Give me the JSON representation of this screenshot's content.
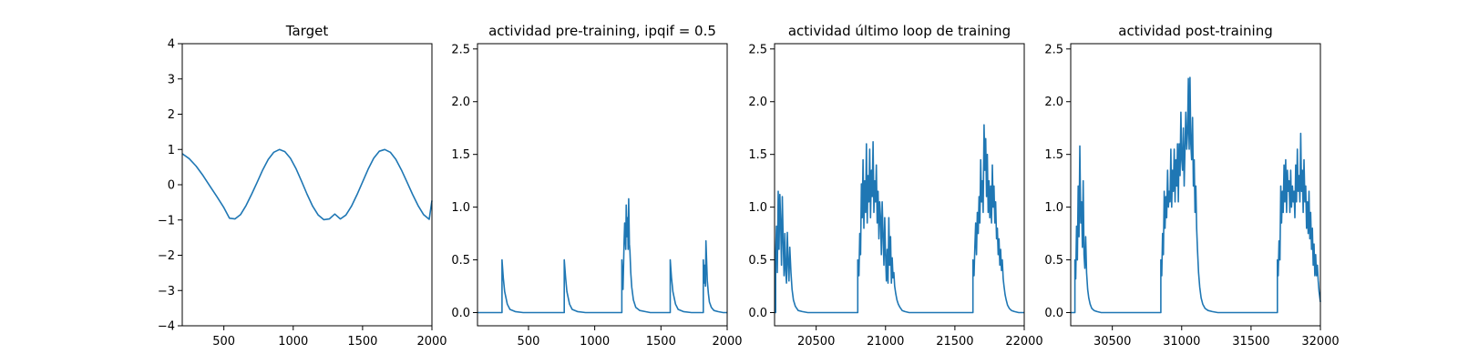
{
  "chart_data": [
    {
      "type": "line",
      "title": "Target",
      "xlabel": "",
      "ylabel": "",
      "xlim": [
        200,
        2000
      ],
      "ylim": [
        -4,
        4
      ],
      "xticks": [
        500,
        1000,
        1500,
        2000
      ],
      "yticks": [
        -4,
        -3,
        -2,
        -1,
        0,
        1,
        2,
        3,
        4
      ],
      "grid": false,
      "series": [
        {
          "x": [
            200,
            250,
            300,
            350,
            400,
            450,
            500,
            540,
            580,
            620,
            660,
            700,
            740,
            780,
            820,
            860,
            900,
            940,
            980,
            1020,
            1060,
            1100,
            1140,
            1180,
            1220,
            1260,
            1300,
            1340,
            1380,
            1420,
            1460,
            1500,
            1540,
            1580,
            1620,
            1660,
            1700,
            1740,
            1780,
            1820,
            1860,
            1900,
            1940,
            1980,
            2000
          ],
          "y": [
            0.88,
            0.74,
            0.53,
            0.26,
            -0.04,
            -0.34,
            -0.65,
            -0.95,
            -0.97,
            -0.85,
            -0.59,
            -0.27,
            0.07,
            0.42,
            0.72,
            0.92,
            1.0,
            0.94,
            0.75,
            0.46,
            0.1,
            -0.27,
            -0.61,
            -0.86,
            -0.99,
            -0.97,
            -0.83,
            -0.97,
            -0.86,
            -0.61,
            -0.28,
            0.08,
            0.44,
            0.75,
            0.95,
            1.0,
            0.92,
            0.72,
            0.42,
            0.08,
            -0.27,
            -0.59,
            -0.85,
            -0.98,
            -0.45
          ]
        }
      ]
    },
    {
      "type": "line",
      "title": "actividad pre-training, ipqif = 0.5",
      "xlabel": "",
      "ylabel": "",
      "xlim": [
        115,
        2000
      ],
      "ylim": [
        -0.125,
        2.55
      ],
      "xticks": [
        500,
        1000,
        1500,
        2000
      ],
      "yticks": [
        0.0,
        0.5,
        1.0,
        1.5,
        2.0,
        2.5
      ],
      "grid": false,
      "series": [
        {
          "x": [
            115,
            300,
            300,
            310,
            320,
            340,
            360,
            400,
            460,
            770,
            770,
            780,
            790,
            810,
            830,
            870,
            930,
            1205,
            1205,
            1212,
            1214,
            1222,
            1226,
            1234,
            1238,
            1244,
            1248,
            1252,
            1256,
            1262,
            1266,
            1272,
            1280,
            1292,
            1310,
            1340,
            1380,
            1420,
            1570,
            1570,
            1580,
            1590,
            1610,
            1630,
            1670,
            1730,
            1820,
            1820,
            1826,
            1830,
            1836,
            1840,
            1846,
            1850,
            1858,
            1866,
            1880,
            1900,
            1930,
            1970,
            2000
          ],
          "y": [
            0,
            0,
            0.5,
            0.33,
            0.2,
            0.08,
            0.03,
            0.01,
            0,
            0,
            0.5,
            0.33,
            0.2,
            0.08,
            0.03,
            0.01,
            0,
            0,
            0.5,
            0.25,
            0.22,
            0.68,
            0.85,
            0.6,
            1.02,
            0.72,
            0.9,
            0.6,
            1.08,
            0.65,
            0.58,
            0.38,
            0.24,
            0.12,
            0.05,
            0.02,
            0.01,
            0,
            0,
            0.5,
            0.33,
            0.2,
            0.08,
            0.03,
            0.01,
            0,
            0,
            0.5,
            0.28,
            0.45,
            0.25,
            0.68,
            0.45,
            0.3,
            0.18,
            0.1,
            0.05,
            0.02,
            0.01,
            0,
            0
          ]
        }
      ]
    },
    {
      "type": "line",
      "title": "actividad último loop de training",
      "xlabel": "",
      "ylabel": "",
      "xlim": [
        20200,
        22000
      ],
      "ylim": [
        -0.125,
        2.55
      ],
      "xticks": [
        20500,
        21000,
        21500,
        22000
      ],
      "yticks": [
        0.0,
        0.5,
        1.0,
        1.5,
        2.0,
        2.5
      ],
      "grid": false,
      "series": [
        {
          "x": [
            20200,
            20208,
            20208,
            20214,
            20220,
            20226,
            20232,
            20238,
            20244,
            20250,
            20256,
            20262,
            20268,
            20274,
            20280,
            20286,
            20292,
            20298,
            20304,
            20310,
            20318,
            20326,
            20336,
            20350,
            20370,
            20400,
            20440,
            20800,
            20800,
            20808,
            20814,
            20820,
            20826,
            20832,
            20838,
            20844,
            20850,
            20856,
            20862,
            20868,
            20874,
            20880,
            20886,
            20892,
            20898,
            20904,
            20910,
            20916,
            20922,
            20928,
            20934,
            20940,
            20946,
            20952,
            20958,
            20964,
            20970,
            20976,
            20982,
            20988,
            20994,
            21000,
            21006,
            21012,
            21018,
            21024,
            21030,
            21036,
            21042,
            21048,
            21054,
            21060,
            21066,
            21074,
            21082,
            21092,
            21104,
            21120,
            21140,
            21170,
            21210,
            21630,
            21630,
            21638,
            21644,
            21650,
            21656,
            21662,
            21668,
            21674,
            21680,
            21686,
            21692,
            21698,
            21704,
            21710,
            21716,
            21722,
            21728,
            21734,
            21740,
            21746,
            21752,
            21758,
            21764,
            21770,
            21776,
            21782,
            21788,
            21794,
            21800,
            21806,
            21812,
            21818,
            21824,
            21830,
            21836,
            21842,
            21848,
            21854,
            21862,
            21870,
            21880,
            21892,
            21908,
            21930,
            21960,
            22000
          ],
          "y": [
            0,
            0,
            0.55,
            0.82,
            0.38,
            1.15,
            0.6,
            1.12,
            0.85,
            0.45,
            1.1,
            0.7,
            0.35,
            0.75,
            0.4,
            0.28,
            0.76,
            0.48,
            0.3,
            0.62,
            0.38,
            0.22,
            0.12,
            0.06,
            0.02,
            0.01,
            0,
            0,
            0.5,
            0.35,
            0.75,
            0.55,
            1.22,
            0.9,
            1.45,
            0.8,
            1.25,
            0.95,
            1.6,
            0.85,
            1.3,
            1.05,
            1.55,
            0.9,
            1.35,
            1.1,
            1.62,
            0.95,
            1.25,
            1.05,
            1.4,
            0.85,
            1.15,
            0.7,
            1.05,
            0.9,
            0.55,
            1.05,
            0.75,
            0.45,
            0.9,
            0.55,
            0.3,
            0.6,
            0.28,
            0.9,
            0.45,
            0.72,
            0.28,
            0.52,
            0.33,
            0.38,
            0.25,
            0.18,
            0.12,
            0.08,
            0.05,
            0.02,
            0.01,
            0,
            0,
            0,
            0.5,
            0.35,
            0.62,
            0.85,
            0.55,
            0.95,
            0.75,
            1.1,
            0.85,
            1.45,
            1.05,
            1.25,
            0.95,
            1.78,
            1.35,
            1.65,
            1.1,
            1.5,
            0.95,
            1.25,
            0.9,
            1.2,
            0.85,
            1.4,
            1.0,
            1.2,
            0.85,
            1.05,
            0.7,
            0.8,
            0.55,
            0.7,
            0.45,
            0.6,
            0.4,
            0.5,
            0.32,
            0.25,
            0.17,
            0.12,
            0.07,
            0.04,
            0.02,
            0.01,
            0,
            0
          ]
        }
      ]
    },
    {
      "type": "line",
      "title": "actividad post-training",
      "xlabel": "",
      "ylabel": "",
      "xlim": [
        30200,
        32000
      ],
      "ylim": [
        -0.125,
        2.55
      ],
      "xticks": [
        30500,
        31000,
        31500,
        32000
      ],
      "yticks": [
        0.0,
        0.5,
        1.0,
        1.5,
        2.0,
        2.5
      ],
      "grid": false,
      "series": [
        {
          "x": [
            30200,
            30230,
            30230,
            30236,
            30242,
            30248,
            30254,
            30260,
            30266,
            30272,
            30278,
            30284,
            30290,
            30296,
            30302,
            30308,
            30314,
            30322,
            30330,
            30340,
            30352,
            30368,
            30390,
            30420,
            30460,
            30850,
            30850,
            30856,
            30862,
            30868,
            30874,
            30880,
            30886,
            30892,
            30898,
            30904,
            30910,
            30916,
            30922,
            30928,
            30934,
            30940,
            30946,
            30952,
            30958,
            30964,
            30970,
            30976,
            30982,
            30988,
            30994,
            31000,
            31006,
            31012,
            31018,
            31024,
            31030,
            31036,
            31042,
            31048,
            31054,
            31060,
            31066,
            31072,
            31078,
            31084,
            31090,
            31096,
            31102,
            31108,
            31114,
            31122,
            31130,
            31140,
            31152,
            31168,
            31190,
            31220,
            31260,
            31690,
            31690,
            31696,
            31702,
            31708,
            31714,
            31720,
            31726,
            31732,
            31738,
            31744,
            31750,
            31756,
            31762,
            31768,
            31774,
            31780,
            31786,
            31792,
            31798,
            31804,
            31810,
            31816,
            31822,
            31828,
            31834,
            31840,
            31846,
            31852,
            31858,
            31864,
            31870,
            31876,
            31882,
            31888,
            31894,
            31900,
            31906,
            31912,
            31918,
            31924,
            31930,
            31936,
            31942,
            31948,
            31954,
            31960,
            31966,
            31972,
            31978,
            31984,
            31990,
            32000
          ],
          "y": [
            0,
            0,
            0.5,
            0.32,
            0.82,
            0.5,
            1.2,
            0.72,
            1.58,
            0.85,
            1.05,
            0.62,
            1.25,
            0.55,
            0.42,
            0.72,
            0.38,
            0.22,
            0.14,
            0.08,
            0.04,
            0.02,
            0.01,
            0,
            0,
            0,
            0.5,
            0.35,
            0.75,
            0.55,
            1.15,
            0.8,
            1.1,
            0.9,
            1.35,
            1.0,
            1.15,
            1.05,
            1.55,
            1.0,
            1.35,
            1.15,
            1.55,
            1.05,
            1.45,
            1.2,
            1.6,
            1.05,
            1.6,
            1.3,
            1.9,
            1.45,
            1.35,
            1.75,
            1.2,
            1.55,
            1.9,
            1.55,
            1.7,
            2.22,
            1.55,
            2.23,
            1.6,
            1.45,
            1.85,
            1.2,
            1.45,
            0.95,
            1.2,
            0.8,
            0.6,
            0.38,
            0.24,
            0.14,
            0.08,
            0.04,
            0.02,
            0.01,
            0,
            0,
            0.5,
            0.35,
            0.68,
            0.5,
            1.2,
            0.85,
            1.15,
            0.95,
            1.4,
            1.05,
            1.45,
            0.95,
            1.35,
            1.15,
            1.25,
            0.95,
            1.35,
            1.0,
            1.2,
            1.05,
            1.15,
            0.9,
            1.4,
            1.05,
            1.55,
            1.15,
            1.3,
            1.05,
            1.7,
            1.15,
            1.35,
            0.95,
            1.45,
            1.05,
            1.2,
            0.8,
            1.05,
            0.75,
            1.15,
            0.7,
            0.95,
            0.6,
            0.8,
            0.45,
            0.65,
            0.35,
            0.55,
            0.35,
            0.45,
            0.3,
            0.2,
            0.1
          ]
        }
      ]
    }
  ]
}
